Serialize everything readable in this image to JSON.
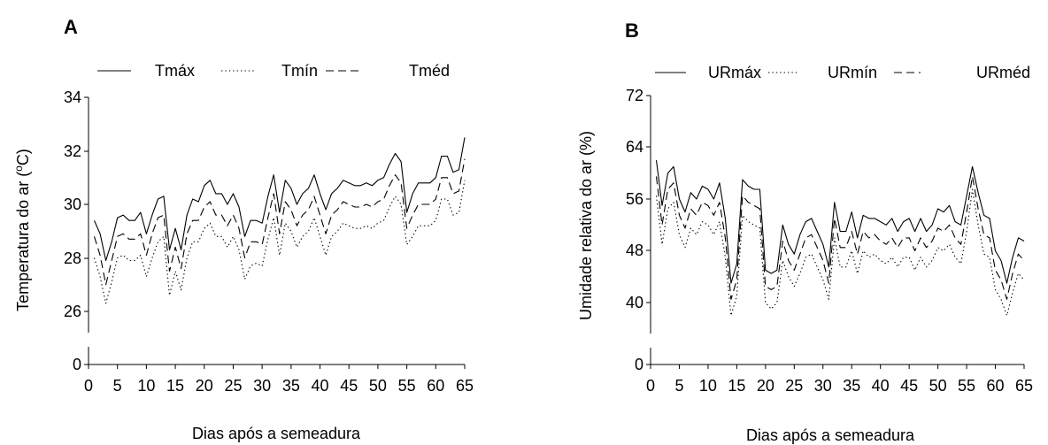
{
  "chart_data": [
    {
      "type": "line",
      "panel_label": "A",
      "title": "",
      "xlabel": "Dias após a semeadura",
      "ylabel": "Temperatura do ar (°C)",
      "ylabel_parts": [
        "Temperatura do ar (",
        "o",
        "C)"
      ],
      "xlim": [
        0,
        65
      ],
      "xticks": [
        0,
        5,
        10,
        15,
        20,
        25,
        30,
        35,
        40,
        45,
        50,
        55,
        60,
        65
      ],
      "yticks": [
        0,
        26,
        28,
        30,
        32,
        34
      ],
      "axis_break": true,
      "grid": false,
      "legend": "top",
      "x": [
        1,
        2,
        3,
        4,
        5,
        6,
        7,
        8,
        9,
        10,
        11,
        12,
        13,
        14,
        15,
        16,
        17,
        18,
        19,
        20,
        21,
        22,
        23,
        24,
        25,
        26,
        27,
        28,
        29,
        30,
        31,
        32,
        33,
        34,
        35,
        36,
        37,
        38,
        39,
        40,
        41,
        42,
        43,
        44,
        45,
        46,
        47,
        48,
        49,
        50,
        51,
        52,
        53,
        54,
        55,
        56,
        57,
        58,
        59,
        60,
        61,
        62,
        63,
        64,
        65
      ],
      "series": [
        {
          "name": "Tmáx",
          "style": "solid",
          "values": [
            29.4,
            28.9,
            27.9,
            28.6,
            29.5,
            29.6,
            29.4,
            29.4,
            29.7,
            28.9,
            29.6,
            30.2,
            30.3,
            28.3,
            29.1,
            28.3,
            29.6,
            30.2,
            30.1,
            30.7,
            30.9,
            30.4,
            30.4,
            30.0,
            30.4,
            29.9,
            28.8,
            29.4,
            29.4,
            29.3,
            30.3,
            31.1,
            29.7,
            30.9,
            30.6,
            30.0,
            30.4,
            30.6,
            31.1,
            30.4,
            29.8,
            30.4,
            30.6,
            30.9,
            30.8,
            30.7,
            30.7,
            30.8,
            30.7,
            30.9,
            31.0,
            31.5,
            31.9,
            31.6,
            29.7,
            30.4,
            30.8,
            30.8,
            30.8,
            31.0,
            31.8,
            31.8,
            31.2,
            31.3,
            32.5
          ]
        },
        {
          "name": "Tmín",
          "style": "dotted",
          "values": [
            28.0,
            27.3,
            26.3,
            27.1,
            28.0,
            28.1,
            27.9,
            27.9,
            28.1,
            27.3,
            28.0,
            28.6,
            28.8,
            26.6,
            27.5,
            26.8,
            28.0,
            28.6,
            28.6,
            29.1,
            29.3,
            28.8,
            28.8,
            28.4,
            28.8,
            28.3,
            27.2,
            27.7,
            27.8,
            27.7,
            28.7,
            29.5,
            28.1,
            29.3,
            29.0,
            28.4,
            28.8,
            29.0,
            29.5,
            28.8,
            28.1,
            28.8,
            29.0,
            29.3,
            29.2,
            29.1,
            29.1,
            29.2,
            29.1,
            29.3,
            29.4,
            29.9,
            30.3,
            30.0,
            28.5,
            28.8,
            29.2,
            29.2,
            29.2,
            29.4,
            30.2,
            30.2,
            29.6,
            29.7,
            30.9
          ]
        },
        {
          "name": "Tméd",
          "style": "dashed",
          "values": [
            28.8,
            28.1,
            27.0,
            27.9,
            28.8,
            28.9,
            28.7,
            28.7,
            28.9,
            28.1,
            28.9,
            29.5,
            29.6,
            27.5,
            28.4,
            27.6,
            28.9,
            29.4,
            29.4,
            29.9,
            30.1,
            29.6,
            29.6,
            29.2,
            29.6,
            29.1,
            28.0,
            28.6,
            28.6,
            28.5,
            29.5,
            30.4,
            28.9,
            30.1,
            29.8,
            29.2,
            29.6,
            29.8,
            30.3,
            29.6,
            28.9,
            29.6,
            29.8,
            30.1,
            30.0,
            29.9,
            29.9,
            30.0,
            29.9,
            30.1,
            30.2,
            30.7,
            31.1,
            30.8,
            29.1,
            29.6,
            30.0,
            30.0,
            30.0,
            30.2,
            31.0,
            31.0,
            30.4,
            30.5,
            31.7
          ]
        }
      ]
    },
    {
      "type": "line",
      "panel_label": "B",
      "title": "",
      "xlabel": "Dias após a semeadura",
      "ylabel": "Umidade relativa do ar (%)",
      "xlim": [
        0,
        65
      ],
      "xticks": [
        0,
        5,
        10,
        15,
        20,
        25,
        30,
        35,
        40,
        45,
        50,
        55,
        60,
        65
      ],
      "yticks": [
        0,
        40,
        48,
        56,
        64,
        72
      ],
      "axis_break": true,
      "grid": false,
      "legend": "top",
      "x": [
        1,
        2,
        3,
        4,
        5,
        6,
        7,
        8,
        9,
        10,
        11,
        12,
        13,
        14,
        15,
        16,
        17,
        18,
        19,
        20,
        21,
        22,
        23,
        24,
        25,
        26,
        27,
        28,
        29,
        30,
        31,
        32,
        33,
        34,
        35,
        36,
        37,
        38,
        39,
        40,
        41,
        42,
        43,
        44,
        45,
        46,
        47,
        48,
        49,
        50,
        51,
        52,
        53,
        54,
        55,
        56,
        57,
        58,
        59,
        60,
        61,
        62,
        63,
        64,
        65
      ],
      "series": [
        {
          "name": "URmáx",
          "style": "solid",
          "values": [
            62.0,
            55.0,
            60.0,
            61.0,
            56.0,
            54.0,
            57.0,
            56.0,
            58.0,
            57.5,
            56.0,
            58.5,
            53.0,
            43.0,
            46.0,
            59.0,
            58.0,
            57.5,
            57.5,
            45.0,
            44.5,
            45.0,
            52.0,
            49.0,
            47.5,
            50.5,
            52.5,
            53.0,
            51.0,
            49.0,
            45.5,
            55.5,
            51.0,
            51.0,
            54.0,
            50.0,
            53.5,
            53.0,
            53.0,
            52.5,
            52.0,
            53.0,
            51.0,
            52.5,
            53.0,
            51.0,
            53.0,
            51.0,
            52.0,
            54.5,
            54.0,
            55.0,
            52.5,
            52.0,
            56.5,
            61.0,
            57.0,
            53.5,
            53.0,
            48.0,
            46.5,
            43.0,
            47.0,
            50.0,
            49.5
          ]
        },
        {
          "name": "URmín",
          "style": "dotted",
          "values": [
            56.5,
            49.0,
            54.5,
            55.5,
            50.5,
            48.5,
            51.5,
            50.5,
            52.5,
            52.0,
            50.5,
            52.5,
            47.0,
            38.0,
            41.0,
            53.5,
            52.5,
            52.0,
            51.5,
            40.0,
            39.0,
            40.0,
            46.5,
            44.0,
            42.5,
            44.5,
            47.0,
            47.5,
            45.5,
            43.5,
            40.5,
            50.0,
            45.5,
            45.5,
            48.0,
            44.5,
            48.0,
            47.0,
            47.5,
            46.5,
            46.0,
            47.0,
            45.5,
            47.0,
            47.0,
            45.0,
            47.0,
            45.5,
            46.5,
            48.5,
            48.0,
            49.0,
            47.0,
            46.0,
            51.0,
            57.5,
            52.0,
            47.5,
            47.0,
            42.0,
            40.5,
            38.0,
            41.5,
            44.5,
            43.5
          ]
        },
        {
          "name": "URméd",
          "style": "dashed",
          "values": [
            59.5,
            52.0,
            57.5,
            58.5,
            53.5,
            51.5,
            54.5,
            53.5,
            55.5,
            55.0,
            53.5,
            55.5,
            50.0,
            40.5,
            43.5,
            56.5,
            55.5,
            55.0,
            54.5,
            42.5,
            42.0,
            42.5,
            49.5,
            46.5,
            45.0,
            47.5,
            50.0,
            50.5,
            48.5,
            46.5,
            43.0,
            53.0,
            48.5,
            48.5,
            51.0,
            47.5,
            51.0,
            50.0,
            50.5,
            49.5,
            49.0,
            50.0,
            48.5,
            50.0,
            50.0,
            48.0,
            50.0,
            48.5,
            49.5,
            51.5,
            51.0,
            52.0,
            50.0,
            49.0,
            54.0,
            59.5,
            54.5,
            50.5,
            50.0,
            45.0,
            43.5,
            40.5,
            44.5,
            47.5,
            46.5
          ]
        }
      ]
    }
  ]
}
